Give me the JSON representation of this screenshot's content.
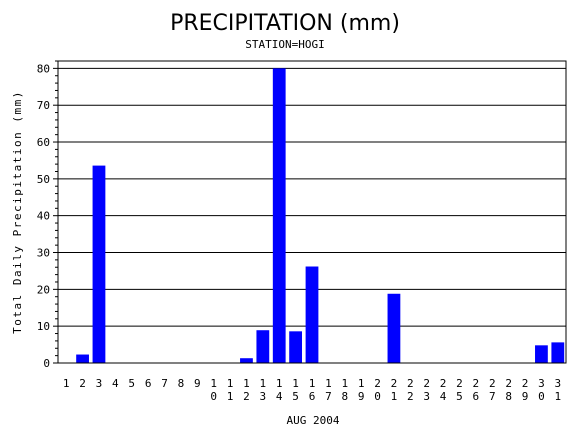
{
  "chart_data": {
    "type": "bar",
    "title": "PRECIPITATION (mm)",
    "subtitle": "STATION=HOGI",
    "xlabel": "AUG 2004",
    "ylabel": "Total Daily Precipitation (mm)",
    "ylim": [
      0,
      82
    ],
    "yticks": [
      0,
      10,
      20,
      30,
      40,
      50,
      60,
      70,
      80
    ],
    "grid": true,
    "bar_color": "#0000ff",
    "categories": [
      "1",
      "2",
      "3",
      "4",
      "5",
      "6",
      "7",
      "8",
      "9",
      "10",
      "11",
      "12",
      "13",
      "14",
      "15",
      "16",
      "17",
      "18",
      "19",
      "20",
      "21",
      "22",
      "23",
      "24",
      "25",
      "26",
      "27",
      "28",
      "29",
      "30",
      "31"
    ],
    "values": [
      0,
      2.3,
      53.6,
      0,
      0,
      0,
      0,
      0,
      0,
      0,
      0,
      1.3,
      8.9,
      80.0,
      8.6,
      26.2,
      0,
      0,
      0,
      0,
      18.8,
      0,
      0,
      0,
      0,
      0,
      0,
      0,
      0,
      4.8,
      5.6
    ]
  }
}
